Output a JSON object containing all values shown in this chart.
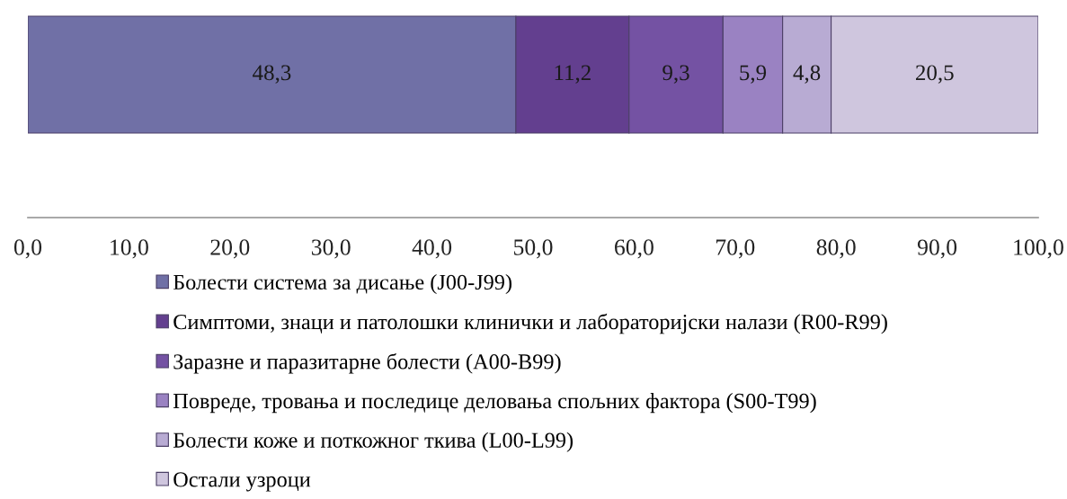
{
  "chart_data": {
    "type": "bar",
    "orientation": "horizontal",
    "stacked": true,
    "categories": [
      null
    ],
    "series": [
      {
        "name": "Болести система за дисање (J00-J99)",
        "color": "#7070a6",
        "values": [
          48.3
        ],
        "value_labels": [
          "48,3"
        ]
      },
      {
        "name": "Симптоми, знаци и патолошки клинички и лабораторијски налази (R00-R99)",
        "color": "#633f8f",
        "values": [
          11.2
        ],
        "value_labels": [
          "11,2"
        ]
      },
      {
        "name": "Заразне и паразитарне болести (A00-B99)",
        "color": "#7452a3",
        "values": [
          9.3
        ],
        "value_labels": [
          "9,3"
        ]
      },
      {
        "name": "Повреде, тровања и последице деловања спољних фактора (S00-T99)",
        "color": "#9a82c2",
        "values": [
          5.9
        ],
        "value_labels": [
          "5,9"
        ]
      },
      {
        "name": "Болести коже и поткожног ткива (L00-L99)",
        "color": "#b8abd3",
        "values": [
          4.8
        ],
        "value_labels": [
          "4,8"
        ]
      },
      {
        "name": "Остали узроци",
        "color": "#cfc6de",
        "values": [
          20.5
        ],
        "value_labels": [
          "20,5"
        ]
      }
    ],
    "xlim": [
      0,
      100
    ],
    "xticks": [
      {
        "value": 0,
        "label": "0,0"
      },
      {
        "value": 10,
        "label": "10,0"
      },
      {
        "value": 20,
        "label": "20,0"
      },
      {
        "value": 30,
        "label": "30,0"
      },
      {
        "value": 40,
        "label": "40,0"
      },
      {
        "value": 50,
        "label": "50,0"
      },
      {
        "value": 60,
        "label": "60,0"
      },
      {
        "value": 70,
        "label": "70,0"
      },
      {
        "value": 80,
        "label": "80,0"
      },
      {
        "value": 90,
        "label": "90,0"
      },
      {
        "value": 100,
        "label": "100,0"
      }
    ],
    "tick_labels": "x",
    "grid": false,
    "legend": "bottom"
  }
}
